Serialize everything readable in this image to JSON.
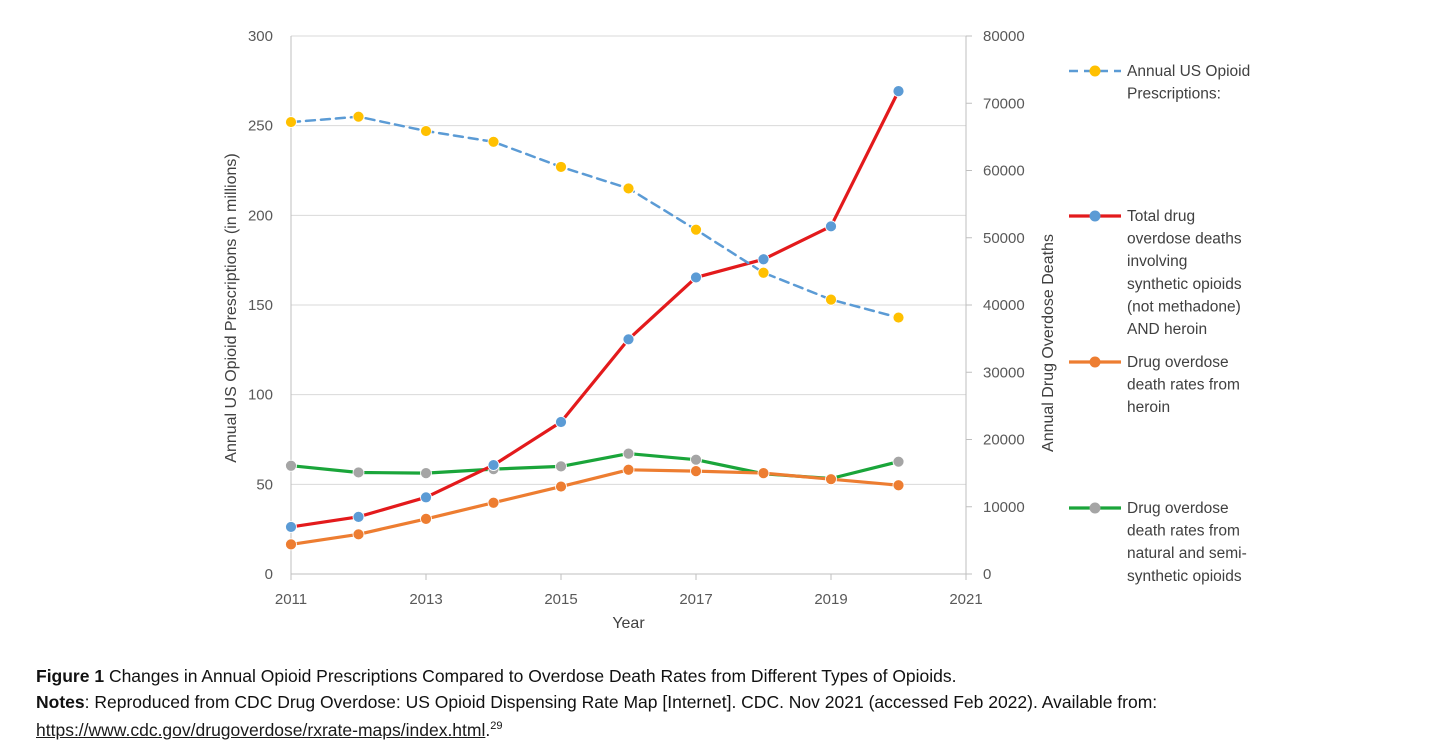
{
  "chart_data": {
    "type": "line",
    "x_axis": {
      "title": "Year",
      "range": [
        2011,
        2021
      ],
      "ticks": [
        "2011",
        "2013",
        "2015",
        "2017",
        "2019",
        "2021"
      ]
    },
    "y_axis_left": {
      "title": "Annual US Opioid Prescriptions (in millions)",
      "range": [
        0,
        300
      ],
      "ticks": [
        "0",
        "50",
        "100",
        "150",
        "200",
        "250",
        "300"
      ]
    },
    "y_axis_right": {
      "title": "Annual Drug Overdose Deaths",
      "range": [
        0,
        80000
      ],
      "ticks": [
        "0",
        "10000",
        "20000",
        "30000",
        "40000",
        "50000",
        "60000",
        "70000",
        "80000"
      ]
    },
    "grid": "horizontal",
    "legend_position": "right",
    "series": [
      {
        "name": "Annual US Opioid Prescriptions:",
        "legend_lines": [
          "Annual US Opioid",
          "Prescriptions:"
        ],
        "axis": "left",
        "style": "dashed",
        "line_color": "#5b9bd5",
        "marker_color": "#ffc000",
        "x": [
          2011,
          2012,
          2013,
          2014,
          2015,
          2016,
          2017,
          2018,
          2019,
          2020
        ],
        "y": [
          252,
          255,
          247,
          241,
          227,
          215,
          192,
          168,
          153,
          143
        ]
      },
      {
        "name": "Total drug overdose deaths involving synthetic opioids (not methadone) AND heroin",
        "legend_lines": [
          "Total drug",
          "overdose deaths",
          "involving",
          "synthetic opioids",
          "(not methadone)",
          "AND heroin"
        ],
        "axis": "right",
        "style": "solid",
        "line_color": "#e31a1c",
        "marker_color": "#5b9bd5",
        "x": [
          2011,
          2012,
          2013,
          2014,
          2015,
          2016,
          2017,
          2018,
          2019,
          2020
        ],
        "y": [
          7000,
          8500,
          11400,
          16200,
          22600,
          34900,
          44100,
          46800,
          51700,
          71800
        ]
      },
      {
        "name": "Drug overdose death rates from heroin",
        "legend_lines": [
          "Drug overdose",
          "death rates from",
          "heroin"
        ],
        "axis": "right",
        "style": "solid",
        "line_color": "#ed7d31",
        "marker_color": "#ed7d31",
        "x": [
          2011,
          2012,
          2013,
          2014,
          2015,
          2016,
          2017,
          2018,
          2019,
          2020
        ],
        "y": [
          4400,
          5900,
          8200,
          10600,
          13000,
          15500,
          15300,
          15000,
          14100,
          13200
        ]
      },
      {
        "name": "Drug overdose death rates from natural and semi-synthetic opioids",
        "legend_lines": [
          "Drug overdose",
          "death rates from",
          "natural and semi-",
          "synthetic opioids"
        ],
        "axis": "right",
        "style": "solid",
        "line_color": "#1aa53a",
        "marker_color": "#a5a5a5",
        "x": [
          2011,
          2012,
          2013,
          2014,
          2015,
          2016,
          2017,
          2018,
          2019,
          2020
        ],
        "y": [
          16100,
          15100,
          15000,
          15600,
          16000,
          17900,
          17000,
          14900,
          14200,
          16700
        ]
      }
    ]
  },
  "caption": {
    "figure_label": "Figure 1",
    "figure_text": " Changes in Annual Opioid Prescriptions Compared to Overdose Death Rates from Different Types of Opioids.",
    "notes_label": "Notes",
    "notes_text": ": Reproduced from CDC Drug Overdose: US Opioid Dispensing Rate Map [Internet]. CDC. Nov 2021 (accessed Feb 2022). Available from: ",
    "link_text": "https://www.cdc.gov/drugoverdose/rxrate-maps/index.html",
    "link_end": ".",
    "ref": "29"
  }
}
